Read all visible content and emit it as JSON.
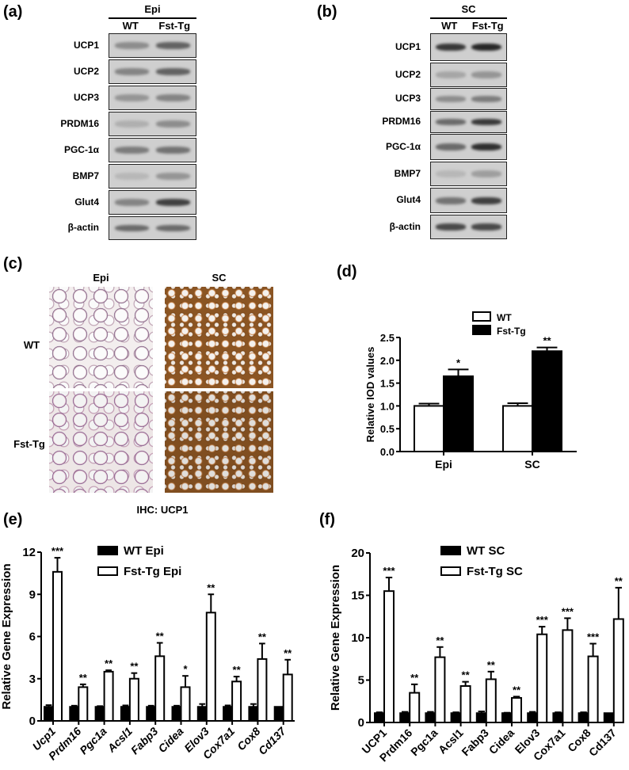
{
  "panels": {
    "a": "(a)",
    "b": "(b)",
    "c": "(c)",
    "d": "(d)",
    "e": "(e)",
    "f": "(f)"
  },
  "blot_a": {
    "tissue": "Epi",
    "columns": [
      "WT",
      "Fst-Tg"
    ],
    "rows": [
      {
        "label": "UCP1",
        "wt": 0.35,
        "tg": 0.6
      },
      {
        "label": "UCP2",
        "wt": 0.4,
        "tg": 0.6
      },
      {
        "label": "UCP3",
        "wt": 0.3,
        "tg": 0.4
      },
      {
        "label": "PRDM16",
        "wt": 0.15,
        "tg": 0.35
      },
      {
        "label": "PGC-1α",
        "wt": 0.45,
        "tg": 0.5
      },
      {
        "label": "BMP7",
        "wt": 0.1,
        "tg": 0.3
      },
      {
        "label": "Glut4",
        "wt": 0.4,
        "tg": 0.8
      },
      {
        "label": "β-actin",
        "wt": 0.55,
        "tg": 0.55
      }
    ]
  },
  "blot_b": {
    "tissue": "SC",
    "columns": [
      "WT",
      "Fst-Tg"
    ],
    "rows": [
      {
        "label": "UCP1",
        "wt": 0.85,
        "tg": 0.95
      },
      {
        "label": "UCP2",
        "wt": 0.2,
        "tg": 0.3
      },
      {
        "label": "UCP3",
        "wt": 0.35,
        "tg": 0.45
      },
      {
        "label": "PRDM16",
        "wt": 0.55,
        "tg": 0.85
      },
      {
        "label": "PGC-1α",
        "wt": 0.55,
        "tg": 0.9
      },
      {
        "label": "BMP7",
        "wt": 0.1,
        "tg": 0.25
      },
      {
        "label": "Glut4",
        "wt": 0.5,
        "tg": 0.8
      },
      {
        "label": "β-actin",
        "wt": 0.75,
        "tg": 0.75
      }
    ]
  },
  "ihc": {
    "columns": [
      "Epi",
      "SC"
    ],
    "rows": [
      "WT",
      "Fst-Tg"
    ],
    "caption": "IHC: UCP1"
  },
  "chart_data": [
    {
      "type": "bar",
      "panel": "d",
      "ylabel": "Relative IOD values",
      "xlabel": "",
      "ylim": [
        0,
        2.5
      ],
      "yticks": [
        "0.0",
        "0.5",
        "1.0",
        "1.5",
        "2.0",
        "2.5"
      ],
      "categories": [
        "Epi",
        "SC"
      ],
      "series": [
        {
          "name": "WT",
          "color": "#ffffff",
          "values": [
            1.0,
            1.0
          ],
          "errors": [
            0.05,
            0.06
          ],
          "sig": [
            "",
            ""
          ]
        },
        {
          "name": "Fst-Tg",
          "color": "#000000",
          "values": [
            1.65,
            2.2
          ],
          "errors": [
            0.15,
            0.08
          ],
          "sig": [
            "*",
            "**"
          ]
        }
      ],
      "legend": "top"
    },
    {
      "type": "bar",
      "panel": "e",
      "ylabel": "Relative  Gene  Expression",
      "xlabel": "",
      "ylim": [
        0,
        12
      ],
      "yticks": [
        "0",
        "3",
        "6",
        "9",
        "12"
      ],
      "categories": [
        "Ucp1",
        "Prdm16",
        "Pgc1a",
        "Acsl1",
        "Fabp3",
        "Cidea",
        "Elov3",
        "Cox7a1",
        "Cox8",
        "Cd137"
      ],
      "series": [
        {
          "name": "WT Epi",
          "color": "#000000",
          "values": [
            1,
            1,
            1,
            1,
            1,
            1,
            1,
            1,
            1,
            1
          ],
          "errors": [
            0.12,
            0.08,
            0.05,
            0.1,
            0.08,
            0.08,
            0.2,
            0.1,
            0.2,
            0
          ],
          "sig": [
            "",
            "",
            "",
            "",
            "",
            "",
            "",
            "",
            "",
            ""
          ]
        },
        {
          "name": "Fst-Tg Epi",
          "color": "#ffffff",
          "values": [
            10.6,
            2.4,
            3.5,
            3.0,
            4.6,
            2.4,
            7.7,
            2.8,
            4.4,
            3.3
          ],
          "errors": [
            1.0,
            0.2,
            0.1,
            0.4,
            0.95,
            0.8,
            1.3,
            0.35,
            1.1,
            1.05
          ],
          "sig": [
            "***",
            "**",
            "**",
            "**",
            "**",
            "*",
            "**",
            "**",
            "**",
            "**"
          ]
        }
      ],
      "legend": "top-center"
    },
    {
      "type": "bar",
      "panel": "f",
      "ylabel": "Relative  Gene  Expression",
      "xlabel": "",
      "ylim": [
        0,
        20
      ],
      "yticks": [
        "0",
        "5",
        "10",
        "15",
        "20"
      ],
      "categories": [
        "UCP1",
        "Prdm16",
        "Pgc1a",
        "Acsl1",
        "Fabp3",
        "Cidea",
        "Elov3",
        "Cox7a1",
        "Cox8",
        "Cd137"
      ],
      "series": [
        {
          "name": "WT SC",
          "color": "#000000",
          "values": [
            1.1,
            1.1,
            1.1,
            1.1,
            1.1,
            1.1,
            1.1,
            1.1,
            1.1,
            1.1
          ],
          "errors": [
            0.1,
            0.15,
            0.15,
            0.1,
            0.2,
            0.05,
            0.15,
            0.1,
            0.1,
            0
          ],
          "sig": [
            "",
            "",
            "",
            "",
            "",
            "",
            "",
            "",
            "",
            ""
          ]
        },
        {
          "name": "Fst-Tg SC",
          "color": "#ffffff",
          "values": [
            15.5,
            3.5,
            7.7,
            4.3,
            5.1,
            2.9,
            10.4,
            10.9,
            7.8,
            12.2
          ],
          "errors": [
            1.6,
            1.0,
            1.2,
            0.5,
            0.9,
            0.15,
            0.9,
            1.4,
            1.5,
            3.7
          ],
          "sig": [
            "***",
            "**",
            "**",
            "**",
            "**",
            "**",
            "***",
            "***",
            "***",
            "**"
          ]
        }
      ],
      "legend": "top-center"
    }
  ]
}
